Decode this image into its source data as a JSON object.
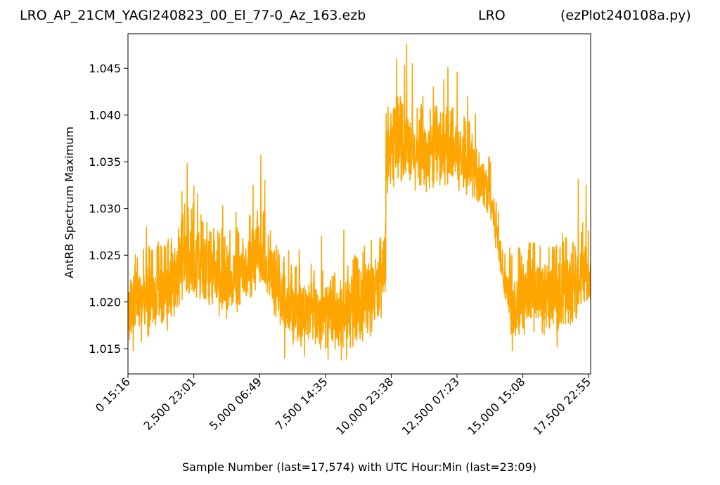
{
  "header": {
    "title_left": "LRO_AP_21CM_YAGI240823_00_El_77-0_Az_163.ezb",
    "title_center": "LRO",
    "title_right": "(ezPlot240108a.py)"
  },
  "chart_data": {
    "type": "line",
    "xlabel": "Sample Number (last=17,574) with UTC Hour:Min (last=23:09)",
    "ylabel": "AntRB Spectrum Maximum",
    "xlim": [
      0,
      17574
    ],
    "ylim": [
      1.0123,
      1.0487
    ],
    "grid": false,
    "series_color": "#ffa500",
    "x_ticks": [
      {
        "value": 0,
        "label": "0  15:16"
      },
      {
        "value": 2500,
        "label": "2,500  23:01"
      },
      {
        "value": 5000,
        "label": "5,000  06:49"
      },
      {
        "value": 7500,
        "label": "7,500  14:35"
      },
      {
        "value": 10000,
        "label": "10,000  23:38"
      },
      {
        "value": 12500,
        "label": "12,500  07:23"
      },
      {
        "value": 15000,
        "label": "15,000  15:08"
      },
      {
        "value": 17500,
        "label": "17,500  22:55"
      }
    ],
    "y_ticks": [
      {
        "value": 1.015,
        "label": "1.015"
      },
      {
        "value": 1.02,
        "label": "1.020"
      },
      {
        "value": 1.025,
        "label": "1.025"
      },
      {
        "value": 1.03,
        "label": "1.030"
      },
      {
        "value": 1.035,
        "label": "1.035"
      },
      {
        "value": 1.04,
        "label": "1.040"
      },
      {
        "value": 1.045,
        "label": "1.045"
      }
    ],
    "series": [
      {
        "envelope_x": [
          0,
          300,
          800,
          1500,
          2000,
          2300,
          2700,
          3200,
          3800,
          4300,
          4700,
          5000,
          5300,
          5700,
          6000,
          6500,
          7000,
          7500,
          8000,
          8500,
          9000,
          9500,
          9700,
          9795,
          9800,
          10000,
          10300,
          10600,
          11000,
          11500,
          12000,
          12500,
          13000,
          13500,
          13800,
          14000,
          14300,
          14500,
          14700,
          15000,
          15500,
          16000,
          16500,
          17000,
          17300,
          17574
        ],
        "envelope_low": [
          1.015,
          1.0155,
          1.016,
          1.0168,
          1.0185,
          1.02,
          1.0195,
          1.0182,
          1.018,
          1.0185,
          1.0195,
          1.021,
          1.02,
          1.017,
          1.0155,
          1.0148,
          1.0145,
          1.0148,
          1.0142,
          1.0148,
          1.0155,
          1.017,
          1.0185,
          1.02,
          1.031,
          1.032,
          1.0325,
          1.0315,
          1.031,
          1.0315,
          1.032,
          1.0318,
          1.031,
          1.03,
          1.028,
          1.025,
          1.02,
          1.016,
          1.015,
          1.016,
          1.0165,
          1.016,
          1.0158,
          1.0175,
          1.019,
          1.019
        ],
        "envelope_high": [
          1.0228,
          1.0245,
          1.025,
          1.0255,
          1.0275,
          1.03,
          1.0285,
          1.027,
          1.0265,
          1.027,
          1.0285,
          1.03,
          1.028,
          1.025,
          1.0235,
          1.023,
          1.023,
          1.0225,
          1.022,
          1.0235,
          1.025,
          1.0255,
          1.0265,
          1.0275,
          1.04,
          1.04,
          1.041,
          1.0405,
          1.04,
          1.0398,
          1.04,
          1.0395,
          1.038,
          1.036,
          1.034,
          1.03,
          1.025,
          1.024,
          1.0245,
          1.025,
          1.0255,
          1.025,
          1.0255,
          1.0265,
          1.0275,
          1.0265
        ],
        "spikes": [
          {
            "x": 700,
            "y": 1.028
          },
          {
            "x": 1500,
            "y": 1.0262
          },
          {
            "x": 2050,
            "y": 1.0318
          },
          {
            "x": 2150,
            "y": 1.0305
          },
          {
            "x": 2250,
            "y": 1.0348
          },
          {
            "x": 2500,
            "y": 1.0324
          },
          {
            "x": 2650,
            "y": 1.0316
          },
          {
            "x": 3000,
            "y": 1.0285
          },
          {
            "x": 3600,
            "y": 1.0303
          },
          {
            "x": 4100,
            "y": 1.0296
          },
          {
            "x": 4750,
            "y": 1.0325
          },
          {
            "x": 5050,
            "y": 1.0357
          },
          {
            "x": 5200,
            "y": 1.033
          },
          {
            "x": 6100,
            "y": 1.0255
          },
          {
            "x": 6500,
            "y": 1.0256
          },
          {
            "x": 7350,
            "y": 1.027
          },
          {
            "x": 7600,
            "y": 1.0245
          },
          {
            "x": 8200,
            "y": 1.0277
          },
          {
            "x": 9250,
            "y": 1.0266
          },
          {
            "x": 9700,
            "y": 1.0265
          },
          {
            "x": 10200,
            "y": 1.046
          },
          {
            "x": 10500,
            "y": 1.0453
          },
          {
            "x": 10580,
            "y": 1.0476
          },
          {
            "x": 10800,
            "y": 1.0455
          },
          {
            "x": 11200,
            "y": 1.042
          },
          {
            "x": 11600,
            "y": 1.043
          },
          {
            "x": 12000,
            "y": 1.0438
          },
          {
            "x": 12150,
            "y": 1.0451
          },
          {
            "x": 12500,
            "y": 1.0446
          },
          {
            "x": 12900,
            "y": 1.042
          },
          {
            "x": 13200,
            "y": 1.0401
          },
          {
            "x": 13700,
            "y": 1.0355
          },
          {
            "x": 14500,
            "y": 1.0258
          },
          {
            "x": 15400,
            "y": 1.0263
          },
          {
            "x": 16200,
            "y": 1.0256
          },
          {
            "x": 16500,
            "y": 1.0273
          },
          {
            "x": 17100,
            "y": 1.0331
          },
          {
            "x": 17400,
            "y": 1.0325
          }
        ],
        "dips": [
          {
            "x": 200,
            "y": 1.0148
          },
          {
            "x": 5950,
            "y": 1.014
          },
          {
            "x": 6700,
            "y": 1.0142
          },
          {
            "x": 7600,
            "y": 1.0139
          },
          {
            "x": 8100,
            "y": 1.0138
          },
          {
            "x": 8300,
            "y": 1.0139
          },
          {
            "x": 14600,
            "y": 1.0148
          },
          {
            "x": 16300,
            "y": 1.0152
          }
        ]
      }
    ]
  }
}
